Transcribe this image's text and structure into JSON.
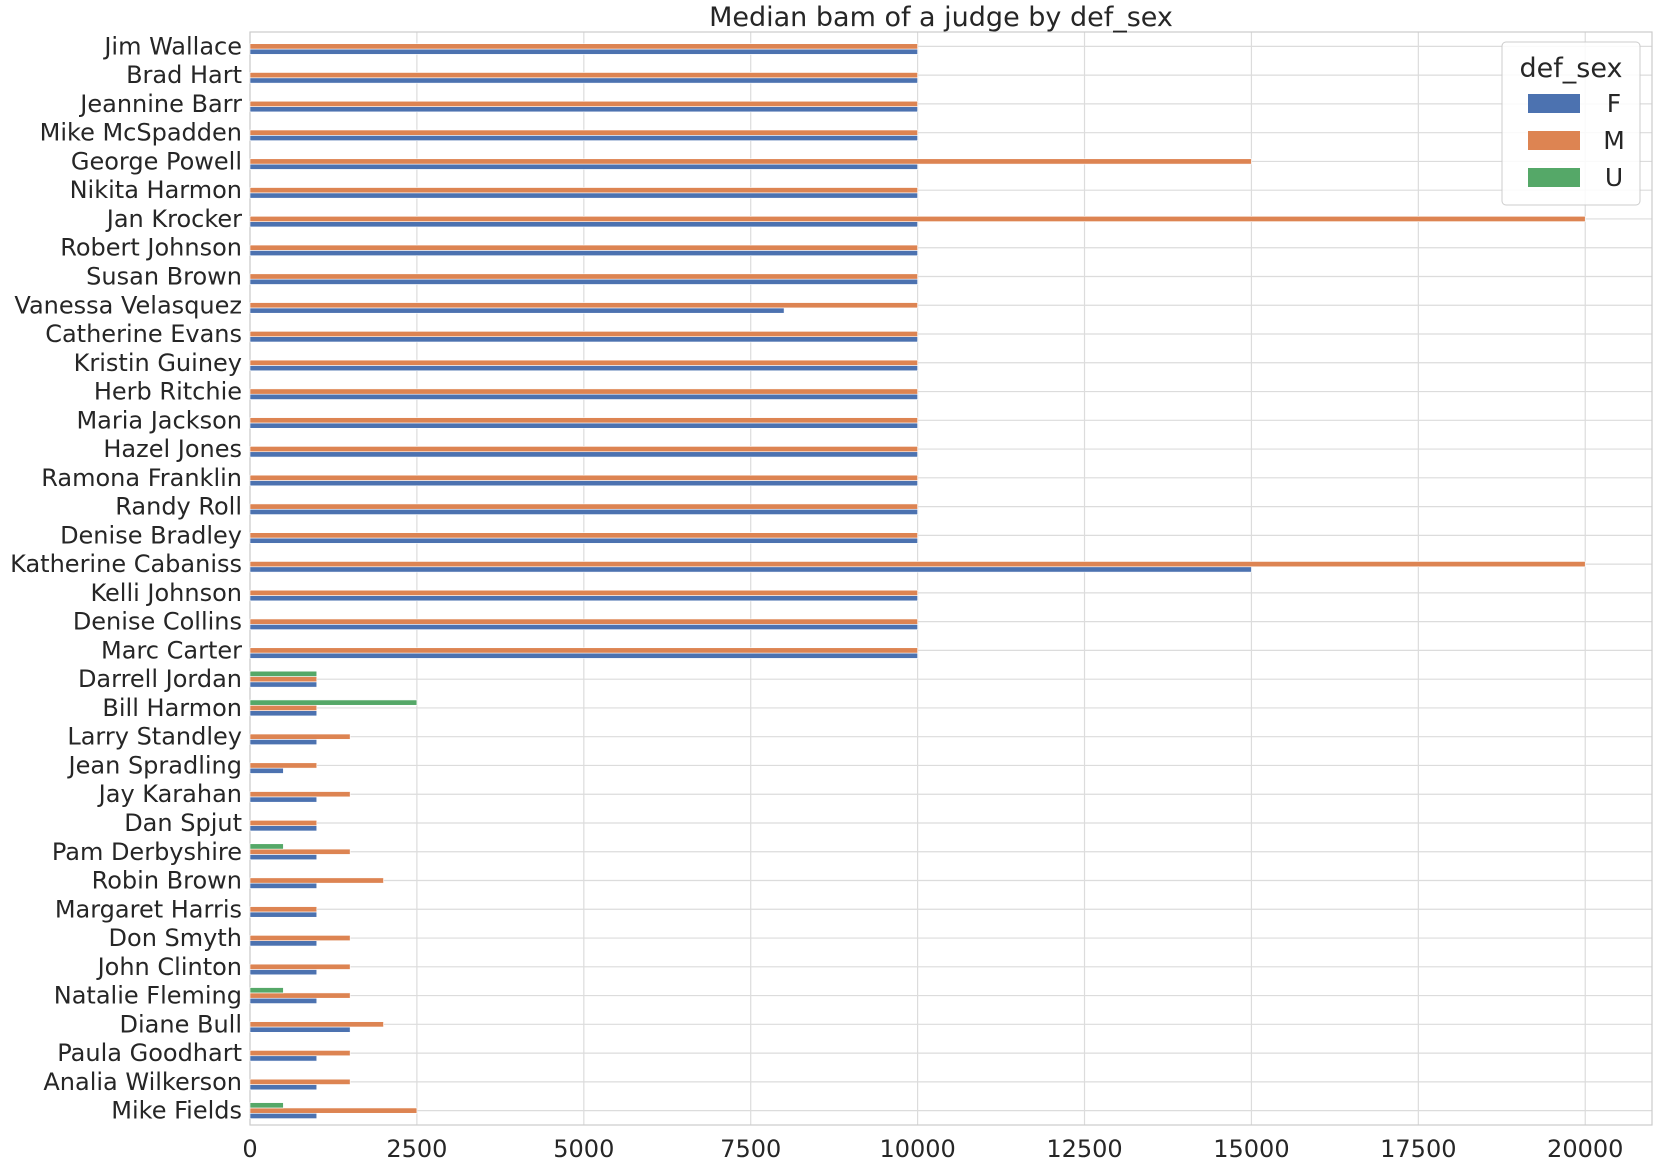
{
  "chart_data": {
    "type": "bar",
    "orientation": "horizontal",
    "title": "Median bam of a judge by def_sex",
    "xlabel": "",
    "ylabel": "",
    "xlim": [
      0,
      21000
    ],
    "xticks": [
      0,
      2500,
      5000,
      7500,
      10000,
      12500,
      15000,
      17500,
      20000
    ],
    "grid": true,
    "legend": {
      "title": "def_sex",
      "placement": "top-right"
    },
    "categories": [
      "Jim Wallace",
      "Brad Hart",
      "Jeannine Barr",
      "Mike McSpadden",
      "George Powell",
      "Nikita Harmon",
      "Jan Krocker",
      "Robert Johnson",
      "Susan Brown",
      "Vanessa Velasquez",
      "Catherine Evans",
      "Kristin Guiney",
      "Herb Ritchie",
      "Maria Jackson",
      "Hazel Jones",
      "Ramona Franklin",
      "Randy Roll",
      "Denise Bradley",
      "Katherine Cabaniss",
      "Kelli Johnson",
      "Denise Collins",
      "Marc Carter",
      "Darrell Jordan",
      "Bill Harmon",
      "Larry Standley",
      "Jean Spradling",
      "Jay Karahan",
      "Dan Spjut",
      "Pam Derbyshire",
      "Robin Brown",
      "Margaret Harris",
      "Don Smyth",
      "John Clinton",
      "Natalie Fleming",
      "Diane Bull",
      "Paula Goodhart",
      "Analia Wilkerson",
      "Mike Fields"
    ],
    "series": [
      {
        "name": "F",
        "color": "#4c72b0",
        "values": [
          10000,
          10000,
          10000,
          10000,
          10000,
          10000,
          10000,
          10000,
          10000,
          8000,
          10000,
          10000,
          10000,
          10000,
          10000,
          10000,
          10000,
          10000,
          15000,
          10000,
          10000,
          10000,
          1000,
          1000,
          1000,
          500,
          1000,
          1000,
          1000,
          1000,
          1000,
          1000,
          1000,
          1000,
          1500,
          1000,
          1000,
          1000
        ]
      },
      {
        "name": "M",
        "color": "#dd8452",
        "values": [
          10000,
          10000,
          10000,
          10000,
          15000,
          10000,
          20000,
          10000,
          10000,
          10000,
          10000,
          10000,
          10000,
          10000,
          10000,
          10000,
          10000,
          10000,
          20000,
          10000,
          10000,
          10000,
          1000,
          1000,
          1500,
          1000,
          1500,
          1000,
          1500,
          2000,
          1000,
          1500,
          1500,
          1500,
          2000,
          1500,
          1500,
          2500
        ]
      },
      {
        "name": "U",
        "color": "#55a868",
        "values": [
          null,
          null,
          null,
          null,
          null,
          null,
          null,
          null,
          null,
          null,
          null,
          null,
          null,
          null,
          null,
          null,
          null,
          null,
          null,
          null,
          null,
          null,
          1000,
          2500,
          null,
          null,
          null,
          null,
          500,
          null,
          null,
          null,
          null,
          500,
          null,
          null,
          null,
          500
        ]
      }
    ]
  }
}
